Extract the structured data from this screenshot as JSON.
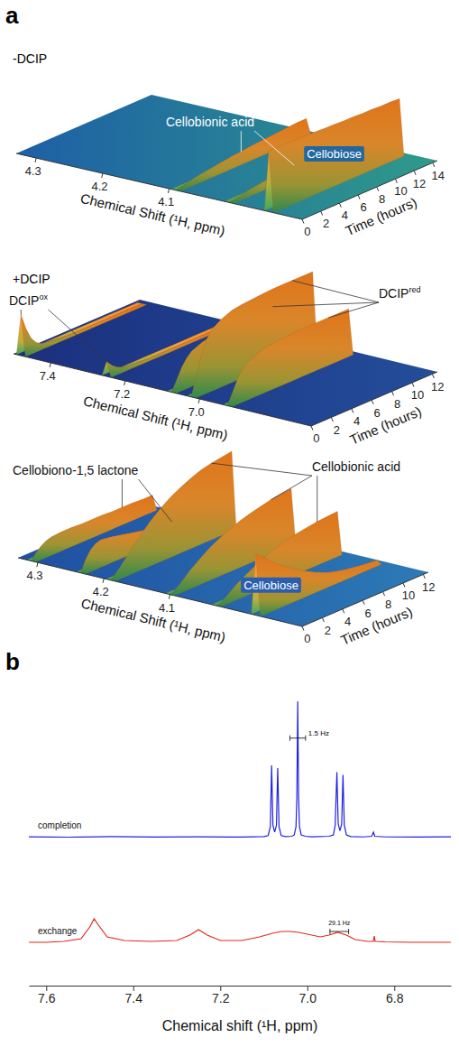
{
  "chart_data": [
    {
      "type": "surface3d",
      "panel": "a",
      "title": "-DCIP",
      "x_label": "Chemical Shift (¹H, ppm)",
      "y_label": "Time (hours)",
      "xlim": [
        4.33,
        3.9
      ],
      "xticks": [
        4.3,
        4.2,
        4.1
      ],
      "ylim": [
        0,
        14.5
      ],
      "yticks": [
        0,
        2,
        4,
        6,
        8,
        10,
        12,
        14
      ],
      "zlim": [
        0,
        1
      ],
      "y": [
        0,
        1,
        2,
        3,
        4,
        5,
        6,
        7,
        8,
        9,
        10,
        11,
        12,
        13,
        14
      ],
      "series": [
        {
          "name": "Cellobionic acid",
          "peaks": [
            {
              "x": 4.09,
              "values": [
                0,
                0.03,
                0.06,
                0.08,
                0.1,
                0.12,
                0.14,
                0.15,
                0.17,
                0.18,
                0.19,
                0.2,
                0.21,
                0.22,
                0.22
              ]
            },
            {
              "x": 4.01,
              "values": [
                0,
                0.02,
                0.05,
                0.07,
                0.09,
                0.1,
                0.12,
                0.13,
                0.14,
                0.15,
                0.16,
                0.17,
                0.18,
                0.18,
                0.19
              ]
            }
          ]
        },
        {
          "name": "Cellobiose",
          "peaks": [
            {
              "x": 3.95,
              "values": [
                0.9,
                0.9,
                0.89,
                0.89,
                0.88,
                0.88,
                0.87,
                0.87,
                0.86,
                0.86,
                0.85,
                0.85,
                0.84,
                0.84,
                0.83
              ]
            }
          ]
        }
      ]
    },
    {
      "type": "surface3d",
      "title": "+DCIP",
      "x_label": "Chemical Shift (¹H, ppm)",
      "y_label": "Time (hours)",
      "xlim": [
        7.5,
        6.7
      ],
      "xticks": [
        7.4,
        7.2,
        {
          "value": 7,
          "label": "7.0"
        }
      ],
      "ylim": [
        0,
        12.5
      ],
      "yticks": [
        0,
        2,
        4,
        6,
        8,
        10,
        12
      ],
      "zlim": [
        0,
        1
      ],
      "y": [
        0,
        0.5,
        1,
        1.5,
        2,
        3,
        4,
        5,
        6,
        7,
        8,
        9,
        10,
        11,
        12
      ],
      "series": [
        {
          "name": "DCIP",
          "name_sup": "ox",
          "peaks": [
            {
              "x": 7.48,
              "values": [
                0.5,
                0.3,
                0.16,
                0.08,
                0.04,
                0.02,
                0.01,
                0,
                0,
                0,
                0,
                0,
                0,
                0,
                0
              ]
            },
            {
              "x": 7.25,
              "values": [
                0.18,
                0.11,
                0.06,
                0.03,
                0.02,
                0.01,
                0,
                0,
                0,
                0,
                0,
                0,
                0,
                0,
                0
              ]
            }
          ]
        },
        {
          "name": "DCIP",
          "name_sup": "red",
          "peaks": [
            {
              "x": 7.075,
              "values": [
                0,
                0.12,
                0.25,
                0.34,
                0.4,
                0.45,
                0.48,
                0.5,
                0.5,
                0.51,
                0.51,
                0.52,
                0.52,
                0.52,
                0.52
              ]
            },
            {
              "x": 7.022,
              "values": [
                0,
                0.22,
                0.45,
                0.62,
                0.72,
                0.8,
                0.85,
                0.87,
                0.88,
                0.89,
                0.9,
                0.9,
                0.9,
                0.9,
                0.9
              ]
            },
            {
              "x": 6.925,
              "values": [
                0,
                0.13,
                0.27,
                0.37,
                0.43,
                0.48,
                0.52,
                0.53,
                0.54,
                0.55,
                0.55,
                0.55,
                0.55,
                0.55,
                0.55
              ]
            }
          ]
        }
      ]
    },
    {
      "type": "surface3d",
      "x_label": "Chemical Shift (¹H, ppm)",
      "y_label": "Time (hours)",
      "xlim": [
        4.33,
        3.9
      ],
      "xticks": [
        4.3,
        4.2,
        4.1
      ],
      "ylim": [
        0,
        12.5
      ],
      "yticks": [
        0,
        2,
        4,
        6,
        8,
        10,
        12
      ],
      "zlim": [
        0,
        1
      ],
      "y": [
        0,
        0.5,
        1,
        1.5,
        2,
        3,
        4,
        5,
        6,
        7,
        8,
        9,
        10,
        11,
        12
      ],
      "series": [
        {
          "name": "Cellobiono-1,5 lactone",
          "peaks": [
            {
              "x": 4.31,
              "values": [
                0,
                0.08,
                0.14,
                0.18,
                0.2,
                0.21,
                0.21,
                0.2,
                0.2,
                0.2,
                0.19,
                0.19,
                0.19,
                0.18,
                0.18
              ]
            },
            {
              "x": 4.235,
              "values": [
                0,
                0.15,
                0.25,
                0.3,
                0.32,
                0.3,
                0.27,
                0.24,
                0.21,
                0.19,
                0.17,
                0.16,
                0.15,
                0.14,
                0.14
              ]
            }
          ]
        },
        {
          "name": "Cellobionic acid",
          "peaks": [
            {
              "x": 4.19,
              "values": [
                0,
                0.05,
                0.12,
                0.2,
                0.28,
                0.42,
                0.55,
                0.66,
                0.75,
                0.82,
                0.88,
                0.93,
                0.96,
                0.98,
                1
              ]
            },
            {
              "x": 4.1,
              "values": [
                0,
                0.03,
                0.08,
                0.14,
                0.2,
                0.3,
                0.39,
                0.46,
                0.52,
                0.57,
                0.61,
                0.64,
                0.67,
                0.69,
                0.7
              ]
            },
            {
              "x": 4.03,
              "values": [
                0,
                0.02,
                0.06,
                0.11,
                0.16,
                0.24,
                0.31,
                0.37,
                0.42,
                0.46,
                0.49,
                0.51,
                0.53,
                0.54,
                0.55
              ]
            }
          ]
        },
        {
          "name": "Cellobiose",
          "peaks": [
            {
              "x": 3.97,
              "values": [
                0.8,
                0.74,
                0.68,
                0.62,
                0.56,
                0.46,
                0.37,
                0.29,
                0.22,
                0.16,
                0.12,
                0.09,
                0.07,
                0.05,
                0.04
              ]
            }
          ]
        }
      ]
    },
    {
      "type": "line",
      "panel": "b",
      "x_label": "Chemical shift (¹H, ppm)",
      "xlim": [
        7.64,
        6.67
      ],
      "xticks": [
        7.6,
        7.4,
        7.2,
        {
          "value": 7,
          "label": "7.0"
        },
        6.8
      ],
      "tick_labels": "x",
      "series": [
        {
          "name": "completion",
          "color": "#2020e8",
          "ylim": [
            0,
            100
          ],
          "x": [
            7.64,
            7.55,
            7.45,
            7.35,
            7.25,
            7.15,
            7.1,
            7.09,
            7.085,
            7.082,
            7.079,
            7.075,
            7.071,
            7.068,
            7.065,
            7.06,
            7.05,
            7.035,
            7.03,
            7.026,
            7.024,
            7.022,
            7.02,
            7.018,
            7.014,
            7.005,
            6.99,
            6.95,
            6.94,
            6.936,
            6.932,
            6.929,
            6.925,
            6.921,
            6.918,
            6.915,
            6.91,
            6.9,
            6.87,
            6.852,
            6.848,
            6.845,
            6.82,
            6.75,
            6.67
          ],
          "values": [
            0.6,
            0.3,
            0.7,
            0.4,
            0.6,
            0.4,
            0.8,
            1.5,
            8,
            53,
            9,
            4,
            9,
            51,
            8,
            1.5,
            0.8,
            1,
            2,
            8,
            30,
            100,
            30,
            8,
            2,
            1,
            0.6,
            1,
            2,
            9,
            48,
            10,
            5,
            10,
            46,
            9,
            2,
            0.8,
            0.5,
            1,
            4,
            1,
            0.5,
            0.4,
            0.6
          ],
          "annotation": {
            "text": "1.5 Hz",
            "x": [
              7.04,
              7.004
            ],
            "y": 73
          }
        },
        {
          "name": "exchange",
          "color": "#e0281e",
          "ylim": [
            0,
            100
          ],
          "x": [
            7.64,
            7.6,
            7.56,
            7.52,
            7.5,
            7.49,
            7.48,
            7.46,
            7.42,
            7.36,
            7.3,
            7.27,
            7.25,
            7.23,
            7.2,
            7.15,
            7.11,
            7.08,
            7.06,
            7.04,
            7.02,
            7,
            6.97,
            6.95,
            6.93,
            6.91,
            6.89,
            6.86,
            6.848,
            6.846,
            6.844,
            6.82,
            6.76,
            6.7,
            6.67
          ],
          "values": [
            1,
            1,
            2,
            5,
            18,
            27,
            20,
            7,
            3,
            2,
            3,
            9,
            15,
            9,
            3,
            3,
            7,
            11,
            13,
            13,
            12,
            10,
            7,
            9,
            12,
            9,
            4,
            2,
            2,
            8,
            2,
            1.5,
            1,
            1,
            1
          ],
          "annotation": {
            "text": "29.1 Hz",
            "x": [
              6.948,
              6.905
            ],
            "y": 13
          }
        }
      ]
    }
  ]
}
